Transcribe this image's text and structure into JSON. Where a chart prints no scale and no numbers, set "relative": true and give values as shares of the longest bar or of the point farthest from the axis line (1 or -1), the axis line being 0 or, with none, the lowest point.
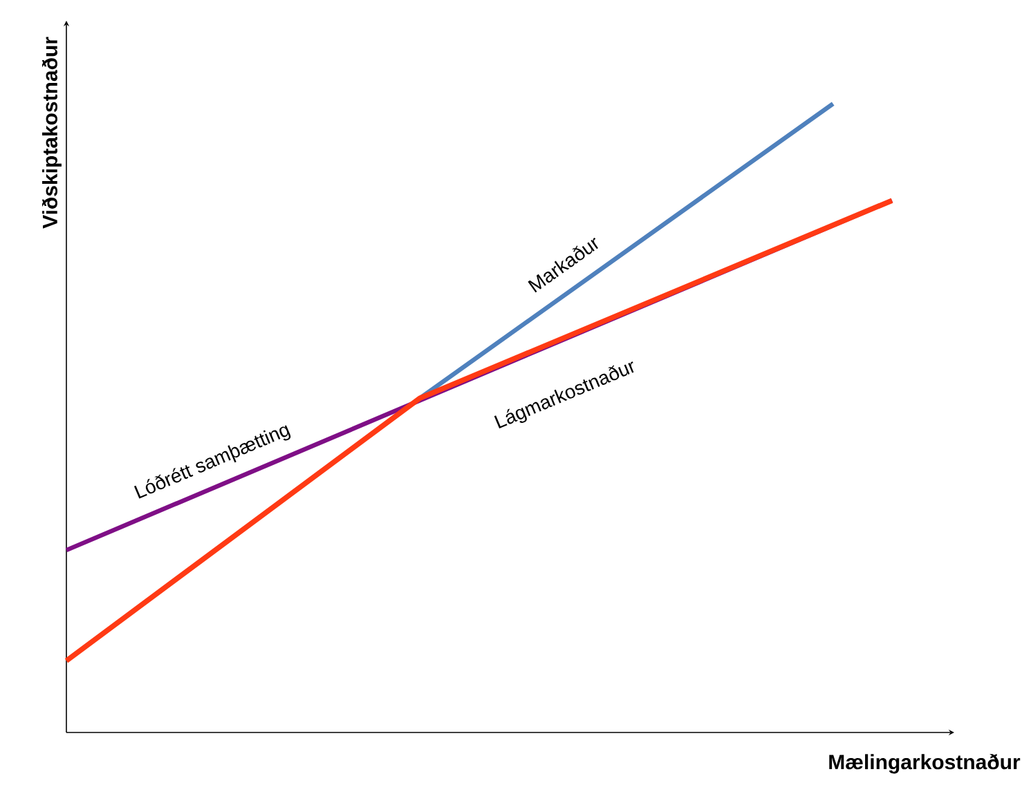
{
  "chart_data": {
    "type": "line",
    "relative": true,
    "xlabel": "Mælingarkostnaður",
    "ylabel": "Viðskiptakostnaður",
    "categories": [
      null,
      null,
      null,
      null,
      null,
      null,
      null,
      null,
      null,
      null,
      null,
      null,
      null,
      null,
      null
    ],
    "series": [
      {
        "name": "Lóðrétt samþætting",
        "color": "#7f0f86",
        "values": [
          0.29,
          null,
          null,
          null,
          null,
          null,
          null,
          null,
          null,
          null,
          null,
          null,
          null,
          null,
          0.846
        ]
      },
      {
        "name": "Markaður",
        "color": "#4f81bd",
        "values": [
          null,
          null,
          null,
          null,
          null,
          null,
          0.532,
          null,
          null,
          null,
          null,
          null,
          null,
          1.0,
          null
        ]
      },
      {
        "name": "Lágmarkostnaður",
        "color": "#ff3a14",
        "values": [
          0.114,
          null,
          null,
          null,
          null,
          null,
          0.532,
          null,
          null,
          null,
          null,
          null,
          null,
          null,
          0.846
        ]
      }
    ]
  }
}
